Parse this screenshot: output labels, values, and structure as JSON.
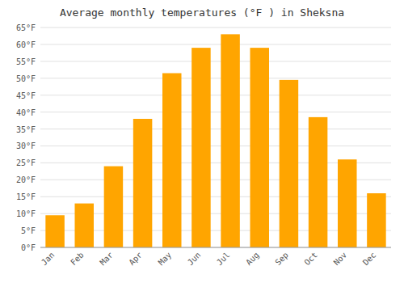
{
  "chart_data": {
    "type": "bar",
    "title": "Average monthly temperatures (°F ) in Sheksna",
    "categories": [
      "Jan",
      "Feb",
      "Mar",
      "Apr",
      "May",
      "Jun",
      "Jul",
      "Aug",
      "Sep",
      "Oct",
      "Nov",
      "Dec"
    ],
    "values": [
      9.5,
      13,
      24,
      38,
      51.5,
      59,
      63,
      59,
      49.5,
      38.5,
      26,
      16
    ],
    "color": "#FFA500",
    "ylim": [
      0,
      65
    ],
    "yticks": [
      {
        "value": 0,
        "label": "0°F"
      },
      {
        "value": 5,
        "label": "5°F"
      },
      {
        "value": 10,
        "label": "10°F"
      },
      {
        "value": 15,
        "label": "15°F"
      },
      {
        "value": 20,
        "label": "20°F"
      },
      {
        "value": 25,
        "label": "25°F"
      },
      {
        "value": 30,
        "label": "30°F"
      },
      {
        "value": 35,
        "label": "35°F"
      },
      {
        "value": 40,
        "label": "40°F"
      },
      {
        "value": 45,
        "label": "45°F"
      },
      {
        "value": 50,
        "label": "50°F"
      },
      {
        "value": 55,
        "label": "55°F"
      },
      {
        "value": 60,
        "label": "60°F"
      },
      {
        "value": 65,
        "label": "65°F"
      }
    ],
    "grid": true
  }
}
